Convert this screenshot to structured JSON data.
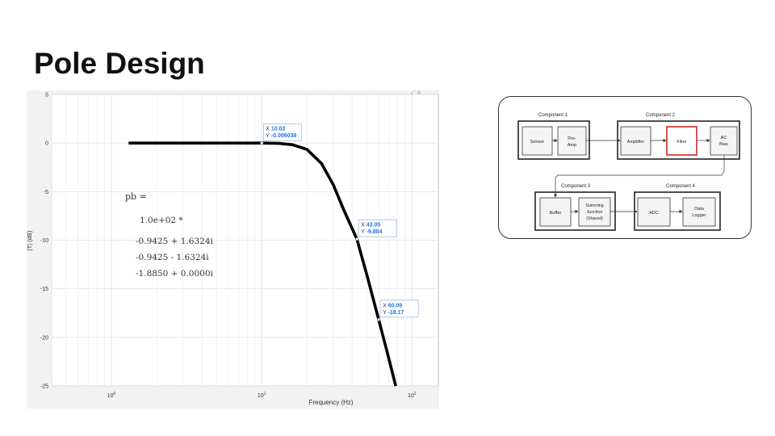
{
  "slide": {
    "title": "Pole Design"
  },
  "plot": {
    "toolbar_glyph": "⤢ ⌂",
    "y_axis_label": "|T| (dB)",
    "x_axis_label": "Frequency (Hz)",
    "y_ticks": [
      "5",
      "0",
      "-5",
      "-10",
      "-15",
      "-20",
      "-25"
    ],
    "x_ticks": [
      {
        "base": "10",
        "exp": "0"
      },
      {
        "base": "10",
        "exp": "1"
      },
      {
        "base": "10",
        "exp": "2"
      }
    ],
    "command_output": {
      "var": "pb =",
      "scale": "1.0e+02 *",
      "rows": [
        "-0.9425 + 1.6324i",
        "-0.9425 - 1.6324i",
        "-1.8850 + 0.0000i"
      ]
    },
    "datatips": [
      {
        "x_label": "X",
        "x_value": "10.02",
        "y_label": "Y",
        "y_value": "-0.006038"
      },
      {
        "x_label": "X",
        "x_value": "43.05",
        "y_label": "Y",
        "y_value": "-9.884"
      },
      {
        "x_label": "X",
        "x_value": "60.09",
        "y_label": "Y",
        "y_value": "-18.17"
      }
    ],
    "colors": {
      "curve": "#000000",
      "datatip_value": "#1a73e8",
      "panel": "#f2f2f2"
    }
  },
  "chart_data": {
    "type": "line",
    "title": "",
    "xlabel": "Frequency (Hz)",
    "ylabel": "|T| (dB)",
    "xscale": "log",
    "xlim": [
      0.4,
      150
    ],
    "ylim": [
      -25,
      5
    ],
    "grid": true,
    "series": [
      {
        "x": [
          1.3,
          2,
          3,
          5,
          7,
          10,
          13,
          16,
          20,
          25,
          30,
          35,
          43.05,
          50,
          60.09,
          70,
          78
        ],
        "y": [
          0,
          0,
          0,
          0,
          0,
          -0.006,
          -0.04,
          -0.17,
          -0.65,
          -2.1,
          -4.3,
          -6.8,
          -9.88,
          -13.5,
          -18.17,
          -22.1,
          -25
        ]
      }
    ],
    "datatip_points": [
      {
        "x": 10.02,
        "y": -0.006038
      },
      {
        "x": 43.05,
        "y": -9.884
      },
      {
        "x": 60.09,
        "y": -18.17
      }
    ]
  },
  "diagram": {
    "groups": [
      {
        "name": "component-1",
        "title": "Component 1"
      },
      {
        "name": "component-2",
        "title": "Component 2"
      },
      {
        "name": "component-3",
        "title": "Component 3"
      },
      {
        "name": "component-4",
        "title": "Component 4"
      }
    ],
    "blocks": {
      "sensor": [
        "Sensor"
      ],
      "preamp": [
        "Pre-",
        "Amp"
      ],
      "amplifier": [
        "Amplifier"
      ],
      "filter": [
        "Filter"
      ],
      "acbias": [
        "AC",
        "Bias"
      ],
      "buffer": [
        "Buffer"
      ],
      "summing": [
        "Summing",
        "Junction",
        "(Shared)"
      ],
      "adc": [
        "ADC"
      ],
      "logger": [
        "Data",
        "Logger"
      ]
    },
    "colors": {
      "highlight": "#e53935",
      "block_fill": "#f4f4f4"
    }
  }
}
